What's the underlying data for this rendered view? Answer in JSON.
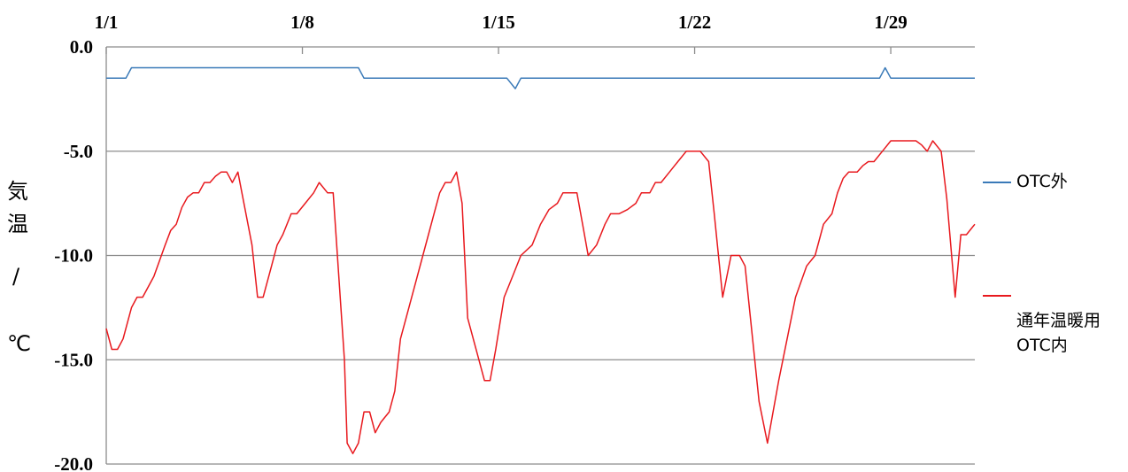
{
  "chart_data": {
    "type": "line",
    "title": "",
    "xlabel": "",
    "ylabel_chars": [
      "気",
      "温",
      "/",
      "℃"
    ],
    "x_tick_labels": [
      "1/1",
      "1/8",
      "1/15",
      "1/22",
      "1/29"
    ],
    "x_tick_days": [
      1,
      8,
      15,
      22,
      29
    ],
    "xlim": [
      1,
      32
    ],
    "y_tick_labels": [
      "0.0",
      "-5.0",
      "-10.0",
      "-15.0",
      "-20.0"
    ],
    "y_tick_values": [
      0,
      -5,
      -10,
      -15,
      -20
    ],
    "ylim": [
      -20,
      0
    ],
    "x_axis_position": "top",
    "grid": "horizontal",
    "legend_position": "right",
    "series": [
      {
        "name": "OTC外",
        "color": "#3a7ab8",
        "points": [
          [
            1,
            -1.5
          ],
          [
            1.7,
            -1.5
          ],
          [
            1.9,
            -1.0
          ],
          [
            2.2,
            -1.0
          ],
          [
            10,
            -1.0
          ],
          [
            10.2,
            -1.5
          ],
          [
            15.3,
            -1.5
          ],
          [
            15.6,
            -2.0
          ],
          [
            15.8,
            -1.5
          ],
          [
            28.6,
            -1.5
          ],
          [
            28.8,
            -1.0
          ],
          [
            29,
            -1.5
          ],
          [
            32,
            -1.5
          ]
        ]
      },
      {
        "name": "通年温暖用\nOTC内",
        "color": "#e8191e",
        "points": [
          [
            1,
            -13.5
          ],
          [
            1.2,
            -14.5
          ],
          [
            1.4,
            -14.5
          ],
          [
            1.6,
            -14.0
          ],
          [
            1.9,
            -12.5
          ],
          [
            2.1,
            -12.0
          ],
          [
            2.3,
            -12.0
          ],
          [
            2.7,
            -11.0
          ],
          [
            3.1,
            -9.5
          ],
          [
            3.3,
            -8.8
          ],
          [
            3.5,
            -8.5
          ],
          [
            3.7,
            -7.7
          ],
          [
            3.9,
            -7.2
          ],
          [
            4.1,
            -7.0
          ],
          [
            4.3,
            -7.0
          ],
          [
            4.5,
            -6.5
          ],
          [
            4.7,
            -6.5
          ],
          [
            4.9,
            -6.2
          ],
          [
            5.1,
            -6.0
          ],
          [
            5.3,
            -6.0
          ],
          [
            5.5,
            -6.5
          ],
          [
            5.7,
            -6.0
          ],
          [
            6.2,
            -9.5
          ],
          [
            6.4,
            -12.0
          ],
          [
            6.6,
            -12.0
          ],
          [
            6.9,
            -10.5
          ],
          [
            7.1,
            -9.5
          ],
          [
            7.3,
            -9.0
          ],
          [
            7.6,
            -8.0
          ],
          [
            7.8,
            -8.0
          ],
          [
            8.1,
            -7.5
          ],
          [
            8.4,
            -7.0
          ],
          [
            8.6,
            -6.5
          ],
          [
            8.9,
            -7.0
          ],
          [
            9.1,
            -7.0
          ],
          [
            9.5,
            -15.0
          ],
          [
            9.6,
            -19.0
          ],
          [
            9.8,
            -19.5
          ],
          [
            10,
            -19.0
          ],
          [
            10.2,
            -17.5
          ],
          [
            10.4,
            -17.5
          ],
          [
            10.6,
            -18.5
          ],
          [
            10.8,
            -18.0
          ],
          [
            11.1,
            -17.5
          ],
          [
            11.3,
            -16.5
          ],
          [
            11.5,
            -14.0
          ],
          [
            11.8,
            -12.5
          ],
          [
            12.1,
            -11.0
          ],
          [
            12.3,
            -10.0
          ],
          [
            12.5,
            -9.0
          ],
          [
            12.7,
            -8.0
          ],
          [
            12.9,
            -7.0
          ],
          [
            13.1,
            -6.5
          ],
          [
            13.3,
            -6.5
          ],
          [
            13.5,
            -6.0
          ],
          [
            13.7,
            -7.5
          ],
          [
            13.9,
            -13.0
          ],
          [
            14.3,
            -15.0
          ],
          [
            14.5,
            -16.0
          ],
          [
            14.7,
            -16.0
          ],
          [
            14.9,
            -14.5
          ],
          [
            15.2,
            -12.0
          ],
          [
            15.5,
            -11.0
          ],
          [
            15.8,
            -10.0
          ],
          [
            16.2,
            -9.5
          ],
          [
            16.5,
            -8.5
          ],
          [
            16.8,
            -7.8
          ],
          [
            17.1,
            -7.5
          ],
          [
            17.3,
            -7.0
          ],
          [
            17.8,
            -7.0
          ],
          [
            18,
            -8.5
          ],
          [
            18.2,
            -10.0
          ],
          [
            18.5,
            -9.5
          ],
          [
            18.8,
            -8.5
          ],
          [
            19,
            -8.0
          ],
          [
            19.3,
            -8.0
          ],
          [
            19.6,
            -7.8
          ],
          [
            19.9,
            -7.5
          ],
          [
            20.1,
            -7.0
          ],
          [
            20.4,
            -7.0
          ],
          [
            20.6,
            -6.5
          ],
          [
            20.8,
            -6.5
          ],
          [
            21.1,
            -6.0
          ],
          [
            21.4,
            -5.5
          ],
          [
            21.7,
            -5.0
          ],
          [
            22.2,
            -5.0
          ],
          [
            22.5,
            -5.5
          ],
          [
            22.7,
            -8.0
          ],
          [
            23,
            -12.0
          ],
          [
            23.3,
            -10.0
          ],
          [
            23.6,
            -10.0
          ],
          [
            23.8,
            -10.5
          ],
          [
            24.3,
            -17.0
          ],
          [
            24.6,
            -19.0
          ],
          [
            25,
            -16.0
          ],
          [
            25.3,
            -14.0
          ],
          [
            25.6,
            -12.0
          ],
          [
            26,
            -10.5
          ],
          [
            26.3,
            -10.0
          ],
          [
            26.6,
            -8.5
          ],
          [
            26.9,
            -8.0
          ],
          [
            27.1,
            -7.0
          ],
          [
            27.3,
            -6.3
          ],
          [
            27.5,
            -6.0
          ],
          [
            27.8,
            -6.0
          ],
          [
            28,
            -5.7
          ],
          [
            28.2,
            -5.5
          ],
          [
            28.4,
            -5.5
          ],
          [
            28.7,
            -5.0
          ],
          [
            29,
            -4.5
          ],
          [
            29.6,
            -4.5
          ],
          [
            29.9,
            -4.5
          ],
          [
            30.1,
            -4.7
          ],
          [
            30.3,
            -5.0
          ],
          [
            30.5,
            -4.5
          ],
          [
            30.8,
            -5.0
          ],
          [
            31,
            -7.3
          ],
          [
            31.3,
            -12.0
          ],
          [
            31.5,
            -9.0
          ],
          [
            31.7,
            -9.0
          ],
          [
            32,
            -8.5
          ]
        ]
      }
    ]
  }
}
